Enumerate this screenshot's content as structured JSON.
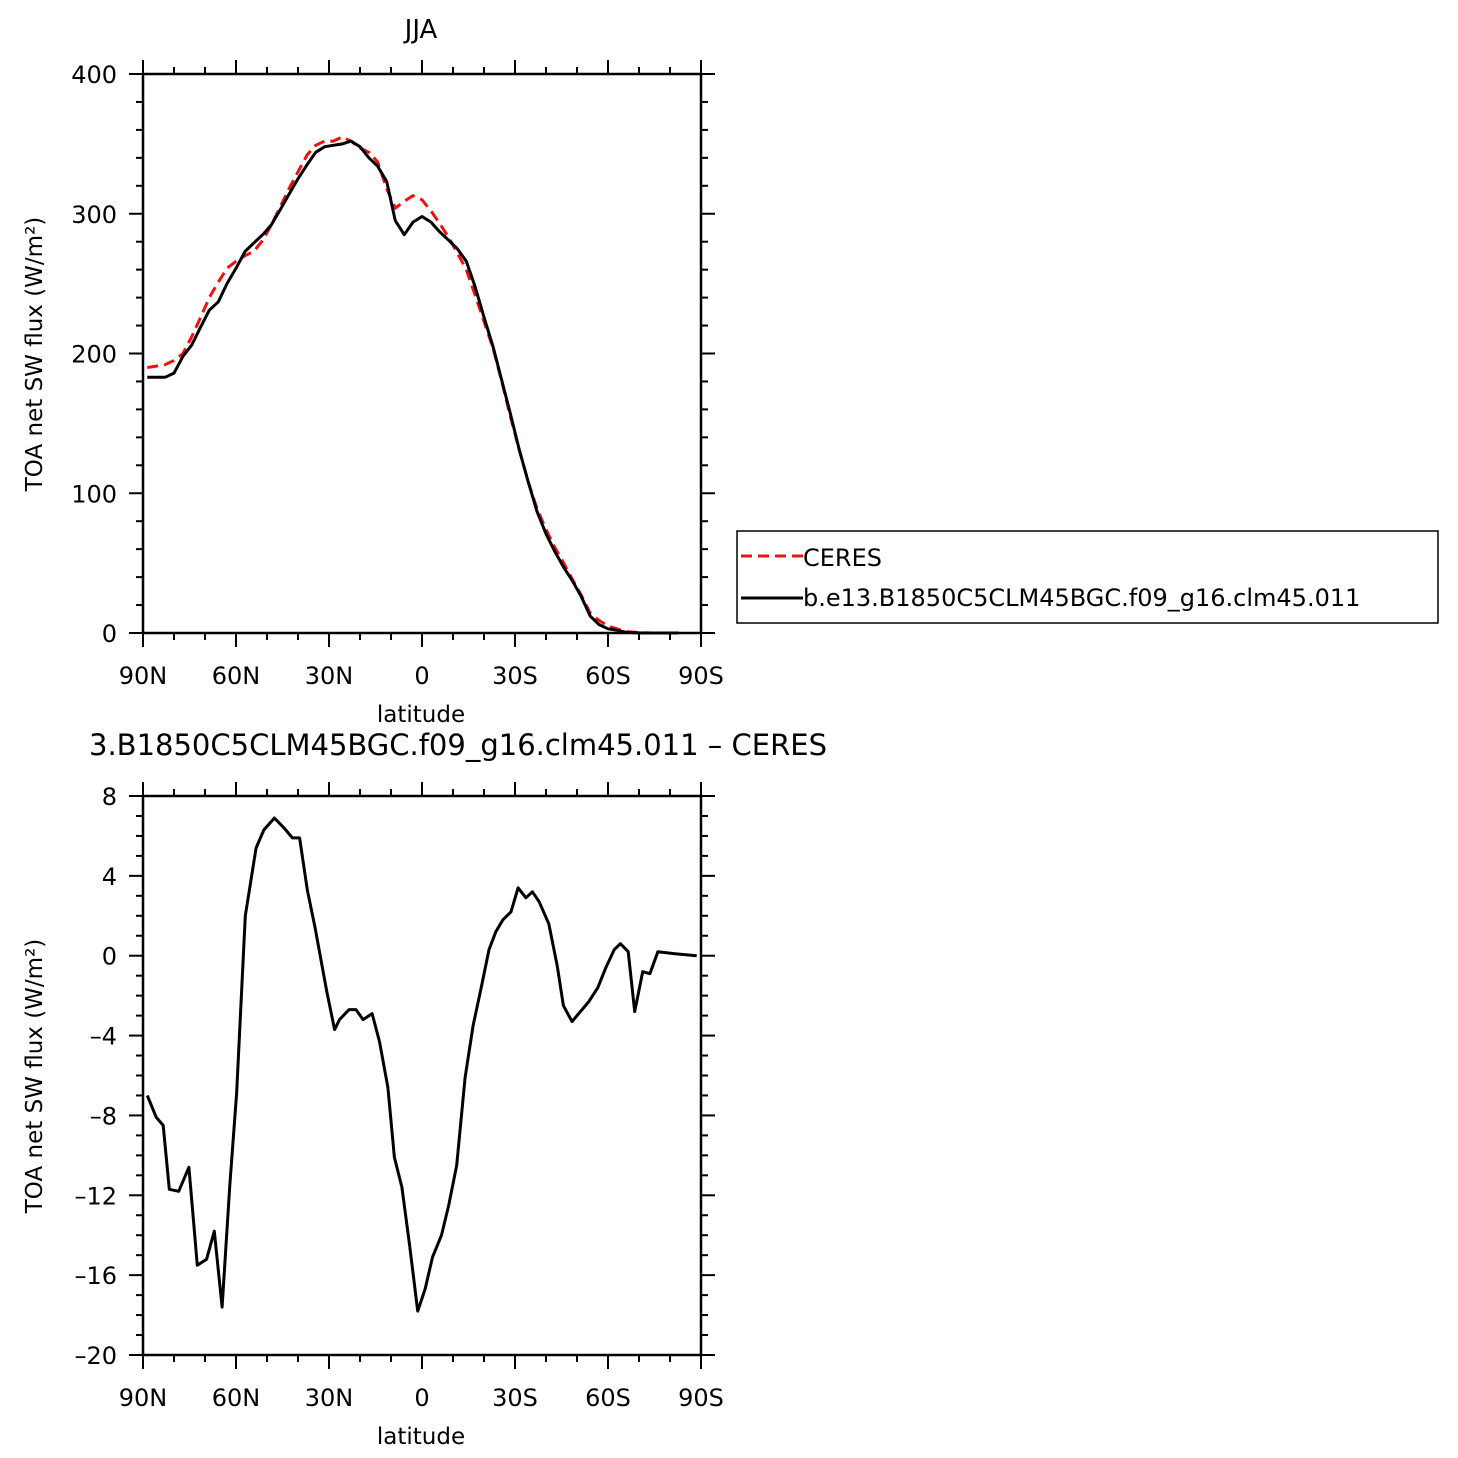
{
  "chart_data": [
    {
      "type": "line",
      "title": "JJA",
      "xlabel": "latitude",
      "ylabel": "TOA net SW flux (W/m²)",
      "xlim": [
        90,
        -90
      ],
      "ylim": [
        0,
        400
      ],
      "x_ticks": [
        {
          "value": 90,
          "label": "90N"
        },
        {
          "value": 60,
          "label": "60N"
        },
        {
          "value": 30,
          "label": "30N"
        },
        {
          "value": 0,
          "label": "0"
        },
        {
          "value": -30,
          "label": "30S"
        },
        {
          "value": -60,
          "label": "60S"
        },
        {
          "value": -90,
          "label": "90S"
        }
      ],
      "y_ticks": [
        {
          "value": 0,
          "label": "0"
        },
        {
          "value": 100,
          "label": "100"
        },
        {
          "value": 200,
          "label": "200"
        },
        {
          "value": 300,
          "label": "300"
        },
        {
          "value": 400,
          "label": "400"
        }
      ],
      "legend": {
        "placement": "right"
      },
      "series": [
        {
          "name": "CERES",
          "color": "#ee1111",
          "dash": "dashed",
          "x": [
            88.6,
            85.7,
            82.9,
            80,
            77.1,
            74.3,
            71.4,
            68.6,
            65.7,
            62.9,
            60,
            57.1,
            54.3,
            51.4,
            48.6,
            45.7,
            42.9,
            40,
            37.1,
            34.3,
            31.4,
            28.6,
            25.7,
            22.9,
            20,
            17.1,
            14.3,
            11.4,
            8.6,
            5.7,
            2.9,
            0,
            -2.9,
            -5.7,
            -8.6,
            -11.4,
            -14.3,
            -17.1,
            -20,
            -22.9,
            -25.7,
            -28.6,
            -31.4,
            -34.3,
            -37.1,
            -40,
            -42.9,
            -45.7,
            -48.6,
            -51.4,
            -54.3,
            -57.1,
            -60,
            -62.9,
            -65.7,
            -68.6,
            -71.4,
            -74.3,
            -77.1,
            -80,
            -82.9
          ],
          "y": [
            190,
            191,
            192,
            195,
            200,
            212,
            226,
            240,
            251,
            261,
            266,
            270,
            273,
            281,
            292,
            305,
            318,
            330,
            342,
            349,
            352,
            352,
            355,
            352,
            347,
            344,
            337,
            318,
            304,
            309,
            313,
            310,
            302,
            293,
            283,
            272,
            260,
            242,
            223,
            204,
            180,
            154,
            131,
            108,
            89,
            74,
            61,
            50,
            38,
            27,
            14,
            9,
            5,
            3,
            1,
            0.5,
            0.2,
            0,
            0,
            0,
            0
          ]
        },
        {
          "name": "b.e13.B1850C5CLM45BGC.f09_g16.clm45.011",
          "color": "#000000",
          "dash": "solid",
          "x": [
            88.6,
            85.7,
            82.9,
            80,
            77.1,
            74.3,
            71.4,
            68.6,
            65.7,
            62.9,
            60,
            57.1,
            54.3,
            51.4,
            48.6,
            45.7,
            42.9,
            40,
            37.1,
            34.3,
            31.4,
            28.6,
            25.7,
            22.9,
            20,
            17.1,
            14.3,
            11.4,
            8.6,
            5.7,
            2.9,
            0,
            -2.9,
            -5.7,
            -8.6,
            -11.4,
            -14.3,
            -17.1,
            -20,
            -22.9,
            -25.7,
            -28.6,
            -31.4,
            -34.3,
            -37.1,
            -40,
            -42.9,
            -45.7,
            -48.6,
            -51.4,
            -54.3,
            -57.1,
            -60,
            -62.9,
            -65.7,
            -68.6,
            -71.4,
            -74.3,
            -77.1,
            -80,
            -82.9
          ],
          "y": [
            183,
            183,
            183,
            186,
            198,
            206,
            219,
            231,
            237,
            250,
            261,
            273,
            279,
            285,
            292,
            303,
            314,
            325,
            335,
            344,
            348,
            349,
            350,
            352,
            348,
            340,
            334,
            323,
            295,
            285,
            294,
            298,
            294,
            287,
            281,
            275,
            266,
            248,
            226,
            205,
            181,
            156,
            131,
            108,
            87,
            71,
            58,
            47,
            37,
            26,
            12,
            6,
            3,
            2,
            0.6,
            0.2,
            0,
            0,
            0,
            0,
            0
          ]
        }
      ]
    },
    {
      "type": "line",
      "title": "3.B1850C5CLM45BGC.f09_g16.clm45.011 – CERES",
      "xlabel": "latitude",
      "ylabel": "TOA net SW flux (W/m²)",
      "xlim": [
        90,
        -90
      ],
      "ylim": [
        -20,
        8
      ],
      "x_ticks": [
        {
          "value": 90,
          "label": "90N"
        },
        {
          "value": 60,
          "label": "60N"
        },
        {
          "value": 30,
          "label": "30N"
        },
        {
          "value": 0,
          "label": "0"
        },
        {
          "value": -30,
          "label": "30S"
        },
        {
          "value": -60,
          "label": "60S"
        },
        {
          "value": -90,
          "label": "90S"
        }
      ],
      "y_ticks": [
        {
          "value": -20,
          "label": "–20"
        },
        {
          "value": -16,
          "label": "–16"
        },
        {
          "value": -12,
          "label": "–12"
        },
        {
          "value": -8,
          "label": "–8"
        },
        {
          "value": -4,
          "label": "–4"
        },
        {
          "value": 0,
          "label": "0"
        },
        {
          "value": 4,
          "label": "4"
        },
        {
          "value": 8,
          "label": "8"
        }
      ],
      "series": [
        {
          "color": "#000000",
          "dash": "solid",
          "x": [
            88.6,
            85.7,
            83.5,
            81.5,
            78.5,
            75.2,
            72.5,
            69.5,
            67,
            64.5,
            62,
            59.8,
            57,
            53.5,
            51,
            47.6,
            44.5,
            41.8,
            39.5,
            37,
            34.5,
            30.7,
            28.2,
            26.6,
            23.5,
            21.3,
            19,
            16.1,
            13.7,
            11,
            8.9,
            6.5,
            4,
            1.4,
            -1,
            -3.4,
            -6.3,
            -8.6,
            -11.2,
            -13.9,
            -16.5,
            -19.1,
            -21.6,
            -23.8,
            -26.1,
            -28.7,
            -31,
            -33.5,
            -35.6,
            -37.8,
            -40.9,
            -43.6,
            -45.6,
            -48.4,
            -51.1,
            -53.8,
            -56.7,
            -59.3,
            -62,
            -64,
            -66.5,
            -68.6,
            -71.2,
            -73.5,
            -76.1,
            -81.6,
            -88.6
          ],
          "y": [
            -7,
            -8.1,
            -8.5,
            -11.7,
            -11.8,
            -10.6,
            -15.5,
            -15.2,
            -13.8,
            -17.6,
            -11.5,
            -6.9,
            2,
            5.4,
            6.3,
            6.9,
            6.4,
            5.9,
            5.9,
            3.3,
            1.4,
            -1.8,
            -3.7,
            -3.2,
            -2.7,
            -2.7,
            -3.2,
            -2.9,
            -4.3,
            -6.6,
            -10.1,
            -11.6,
            -14.5,
            -17.8,
            -16.7,
            -15.1,
            -14,
            -12.5,
            -10.5,
            -6.1,
            -3.5,
            -1.6,
            0.3,
            1.2,
            1.8,
            2.2,
            3.4,
            2.9,
            3.2,
            2.7,
            1.6,
            -0.5,
            -2.5,
            -3.3,
            -2.8,
            -2.3,
            -1.6,
            -0.6,
            0.3,
            0.6,
            0.2,
            -2.8,
            -0.8,
            -0.9,
            0.2,
            0.1,
            0
          ]
        }
      ]
    }
  ]
}
